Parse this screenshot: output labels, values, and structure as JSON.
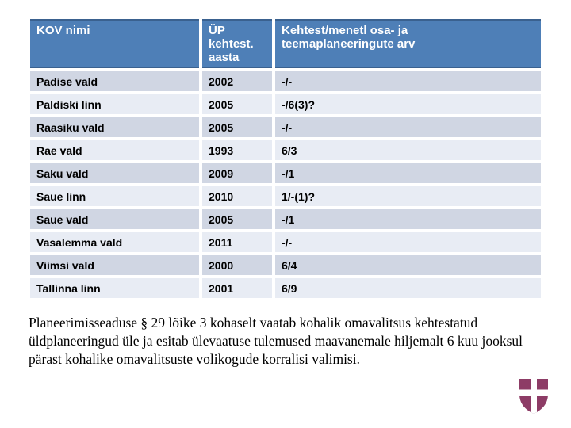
{
  "table": {
    "columns": [
      {
        "label": "KOV nimi"
      },
      {
        "label": "ÜP kehtest.\naasta"
      },
      {
        "label": "Kehtest/menetl osa- ja\nteemaplaneeringute arv"
      }
    ],
    "rows": [
      {
        "kov": "Padise vald",
        "aasta": "2002",
        "arv": "-/-"
      },
      {
        "kov": "Paldiski linn",
        "aasta": "2005",
        "arv": "-/6(3)?"
      },
      {
        "kov": "Raasiku vald",
        "aasta": "2005",
        "arv": "-/-"
      },
      {
        "kov": "Rae vald",
        "aasta": "1993",
        "arv": "6/3"
      },
      {
        "kov": "Saku vald",
        "aasta": "2009",
        "arv": "-/1"
      },
      {
        "kov": "Saue linn",
        "aasta": "2010",
        "arv": "1/-(1)?"
      },
      {
        "kov": "Saue vald",
        "aasta": "2005",
        "arv": "-/1"
      },
      {
        "kov": "Vasalemma vald",
        "aasta": "2011",
        "arv": "-/-"
      },
      {
        "kov": "Viimsi vald",
        "aasta": "2000",
        "arv": "6/4"
      },
      {
        "kov": "Tallinna linn",
        "aasta": "2001",
        "arv": "6/9"
      }
    ]
  },
  "footnote": "Planeerimisseaduse § 29 lõike 3 kohaselt vaatab kohalik omavalitsus kehtestatud üldplaneeringud üle ja esitab ülevaatuse tulemused maavanemale hiljemalt 6 kuu jooksul pärast kohalike omavalitsuste volikogude korralisi valimisi.",
  "logo": {
    "name": "harju-county-coat-of-arms",
    "shield_color": "#8d3c66",
    "cross_color": "#ffffff"
  },
  "colors": {
    "header_bg": "#4e7fb7",
    "header_border": "#3a618f",
    "band_dark": "#d0d6e3",
    "band_light": "#e8ecf4",
    "background": "#ffffff",
    "text": "#000000"
  }
}
